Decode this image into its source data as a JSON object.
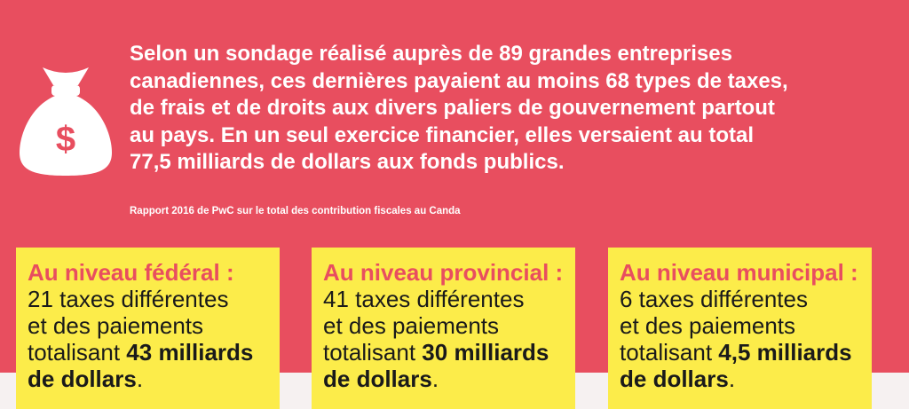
{
  "intro": {
    "line1": "Selon un sondage réalisé auprès de 89 grandes entreprises",
    "line2": "canadiennes, ces dernières payaient au moins 68 types de taxes,",
    "line3": "de frais et de droits aux divers paliers de gouvernement partout",
    "line4": "au pays. En un seul exercice financier, elles versaient au total",
    "line5": "77,5 milliards de dollars aux fonds publics."
  },
  "source": "Rapport 2016 de PwC sur le total des contribution fiscales au Canda",
  "icon": "money-bag-icon",
  "colors": {
    "banner": "#e84e5f",
    "card": "#fcec4a",
    "title": "#e84e5f"
  },
  "cards": [
    {
      "title": "Au niveau fédéral :",
      "line1": "21 taxes différentes",
      "line2": "et des paiements",
      "line3_prefix": "totalisant ",
      "amount": "43 milliards",
      "line4_strong": "de dollars",
      "line4_end": "."
    },
    {
      "title": "Au niveau provincial :",
      "line1": "41 taxes différentes",
      "line2": "et des paiements",
      "line3_prefix": "totalisant ",
      "amount": "30 milliards",
      "line4_strong": "de dollars",
      "line4_end": "."
    },
    {
      "title": "Au niveau municipal :",
      "line1": "6 taxes différentes",
      "line2": "et des paiements",
      "line3_prefix": "totalisant ",
      "amount": "4,5 milliards",
      "line4_strong": "de dollars",
      "line4_end": "."
    }
  ]
}
